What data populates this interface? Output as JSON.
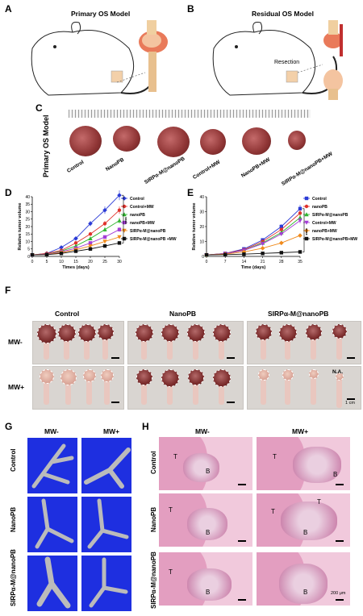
{
  "panels": {
    "A": {
      "label": "A",
      "title": "Primary OS Model"
    },
    "B": {
      "label": "B",
      "title": "Residual OS Model",
      "resection": "Resection"
    },
    "C": {
      "label": "C",
      "side_label": "Primary OS Model",
      "groups": [
        "Control",
        "NanoPB",
        "SIRPα-M@nanoPB",
        "Control+MW",
        "NanoPB+MW",
        "SIRPα-M@nanoPB+MW"
      ]
    },
    "D": {
      "label": "D"
    },
    "E": {
      "label": "E"
    },
    "F": {
      "label": "F",
      "columns": [
        "Control",
        "NanoPB",
        "SIRPα-M@nanoPB"
      ],
      "rows": [
        "MW-",
        "MW+"
      ],
      "na": "N.A.",
      "scale": "1 cm"
    },
    "G": {
      "label": "G",
      "columns": [
        "MW-",
        "MW+"
      ],
      "rows": [
        "Control",
        "NanoPB",
        "SIRPα-M@nanoPB"
      ]
    },
    "H": {
      "label": "H",
      "columns": [
        "MW-",
        "MW+"
      ],
      "rows": [
        "Control",
        "NanoPB",
        "SIRPα-M@nanoPB"
      ],
      "t": "T",
      "b": "B",
      "scale": "200 μm"
    }
  },
  "chart_data": [
    {
      "type": "line",
      "panel": "D",
      "xlabel": "Times (days)",
      "ylabel": "Relative tumor volume",
      "xlim": [
        0,
        30
      ],
      "ylim": [
        0,
        40
      ],
      "xticks": [
        0,
        5,
        10,
        15,
        20,
        25,
        30
      ],
      "yticks": [
        0,
        5,
        10,
        15,
        20,
        25,
        30,
        35,
        40
      ],
      "x": [
        0,
        5,
        10,
        15,
        20,
        25,
        30
      ],
      "significance": "****",
      "series": [
        {
          "name": "Control",
          "color": "#2b3bd6",
          "marker": "diamond",
          "values": [
            1,
            2,
            6,
            12,
            22,
            31,
            41
          ]
        },
        {
          "name": "Control+MW",
          "color": "#e0312b",
          "marker": "circle",
          "values": [
            1,
            2,
            4,
            9,
            15,
            22,
            31
          ]
        },
        {
          "name": "nanoPB",
          "color": "#2fb52f",
          "marker": "triangle",
          "values": [
            1,
            1.5,
            3.5,
            7,
            12,
            18,
            24
          ]
        },
        {
          "name": "nanoPB+MW",
          "color": "#a43cd6",
          "marker": "square",
          "values": [
            1,
            1.5,
            3,
            5.5,
            9,
            13,
            18
          ]
        },
        {
          "name": "SIRPα-M@nanoPB",
          "color": "#f08a1c",
          "marker": "triangle-down",
          "values": [
            1,
            1.3,
            2.5,
            4.5,
            7,
            10,
            13
          ]
        },
        {
          "name": "SIRPα-M@nanoPB +MW",
          "color": "#111111",
          "marker": "square",
          "values": [
            1,
            1.2,
            2,
            3.5,
            5,
            7,
            9
          ]
        }
      ]
    },
    {
      "type": "line",
      "panel": "E",
      "xlabel": "Time (days)",
      "ylabel": "Relative tumor volume",
      "xlim": [
        0,
        35
      ],
      "ylim": [
        0,
        40
      ],
      "xticks": [
        0,
        7,
        14,
        21,
        28,
        35
      ],
      "yticks": [
        0,
        10,
        20,
        30,
        40
      ],
      "x": [
        0,
        7,
        14,
        21,
        28,
        35
      ],
      "significance": "****",
      "series": [
        {
          "name": "Control",
          "color": "#2b3bd6",
          "marker": "square",
          "values": [
            1,
            2,
            5,
            11,
            20,
            32
          ]
        },
        {
          "name": "nanoPB",
          "color": "#e0312b",
          "marker": "circle",
          "values": [
            1,
            2,
            4.5,
            10,
            18,
            29
          ]
        },
        {
          "name": "SIRPα-M@nanoPB",
          "color": "#2fb52f",
          "marker": "triangle",
          "values": [
            1,
            1.8,
            4,
            9,
            16,
            26
          ]
        },
        {
          "name": "Control+MW",
          "color": "#a43cd6",
          "marker": "triangle-down",
          "values": [
            1,
            1.8,
            4,
            8.5,
            15,
            24
          ]
        },
        {
          "name": "nanoPB+MW",
          "color": "#f08a1c",
          "marker": "diamond",
          "values": [
            1,
            1.5,
            3,
            5.5,
            9,
            14
          ]
        },
        {
          "name": "SIRPα-M@nanoPB+MW",
          "color": "#111111",
          "marker": "square",
          "values": [
            1,
            1.2,
            1.5,
            2,
            2.5,
            3
          ]
        }
      ]
    }
  ]
}
